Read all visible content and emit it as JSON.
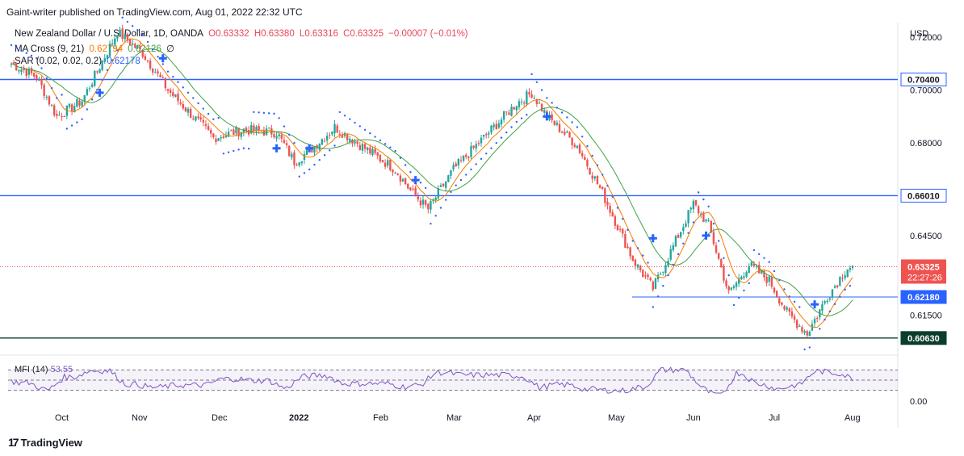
{
  "header": {
    "publisher": "Gaint-writer published on TradingView.com, Aug 01, 2022 22:32 UTC"
  },
  "legend": {
    "symbol": "New Zealand Dollar / U.S. Dollar, 1D, OANDA",
    "open": "O0.63332",
    "high": "H0.63380",
    "low": "L0.63316",
    "close": "C0.63325",
    "change": "−0.00007 (−0.01%)",
    "ma_label": "MA Cross (9, 21)",
    "ma_fast": "0.62794",
    "ma_slow": "0.62126",
    "ma_extra": "∅",
    "sar_label": "SAR (0.02, 0.02, 0.2)",
    "sar_value": "0.62178"
  },
  "mfi": {
    "label": "MFI (14)",
    "value": "53.55",
    "axis_zero": "0.00"
  },
  "currency": "USD",
  "footer": {
    "brand": "TradingView",
    "logo_icon": "tradingview-logo-icon"
  },
  "colors": {
    "up": "#26a69a",
    "down": "#ef5350",
    "ma_fast": "#f57c00",
    "ma_slow": "#43a047",
    "sar": "#2962ff",
    "level": "#2962ff",
    "mfi": "#7e57c2"
  },
  "chart_data": {
    "type": "candlestick",
    "y_range": [
      0.6035,
      0.7255
    ],
    "y_ticks": [
      "0.72000",
      "0.70000",
      "0.68000",
      "0.64500",
      "0.61500"
    ],
    "x_ticks": [
      "Oct",
      "Nov",
      "Dec",
      "2022",
      "Feb",
      "Mar",
      "Apr",
      "May",
      "Jun",
      "Jul",
      "Aug"
    ],
    "horizontal_levels": [
      {
        "value": 0.704,
        "label": "0.70400",
        "style": "blue"
      },
      {
        "value": 0.6601,
        "label": "0.66010",
        "style": "blue"
      },
      {
        "value": 0.6218,
        "label": "0.62180",
        "style": "blue-partial"
      },
      {
        "value": 0.6063,
        "label": "0.60630",
        "style": "dark"
      }
    ],
    "price_label": {
      "value": 0.63325,
      "label": "0.63325",
      "countdown": "22:27:26"
    },
    "path": [
      [
        0,
        0.71
      ],
      [
        10,
        0.705
      ],
      [
        18,
        0.69
      ],
      [
        28,
        0.696
      ],
      [
        42,
        0.722
      ],
      [
        52,
        0.714
      ],
      [
        62,
        0.7
      ],
      [
        72,
        0.69
      ],
      [
        80,
        0.682
      ],
      [
        92,
        0.685
      ],
      [
        105,
        0.684
      ],
      [
        112,
        0.673
      ],
      [
        118,
        0.677
      ],
      [
        128,
        0.686
      ],
      [
        140,
        0.678
      ],
      [
        152,
        0.67
      ],
      [
        158,
        0.662
      ],
      [
        165,
        0.655
      ],
      [
        175,
        0.67
      ],
      [
        190,
        0.685
      ],
      [
        200,
        0.695
      ],
      [
        206,
        0.699
      ],
      [
        212,
        0.69
      ],
      [
        224,
        0.679
      ],
      [
        234,
        0.661
      ],
      [
        246,
        0.636
      ],
      [
        254,
        0.625
      ],
      [
        262,
        0.641
      ],
      [
        270,
        0.657
      ],
      [
        276,
        0.649
      ],
      [
        284,
        0.623
      ],
      [
        292,
        0.634
      ],
      [
        300,
        0.628
      ],
      [
        307,
        0.616
      ],
      [
        315,
        0.608
      ],
      [
        323,
        0.622
      ],
      [
        331,
        0.633
      ]
    ],
    "sar_signals": [
      [
        35,
        0.699
      ],
      [
        60,
        0.712
      ],
      [
        105,
        0.678
      ],
      [
        118,
        0.678
      ],
      [
        160,
        0.666
      ],
      [
        212,
        0.69
      ],
      [
        254,
        0.644
      ],
      [
        275,
        0.645
      ],
      [
        318,
        0.619
      ]
    ],
    "mfi_range": [
      0,
      100
    ],
    "mfi_bands": [
      80,
      50,
      20
    ]
  }
}
